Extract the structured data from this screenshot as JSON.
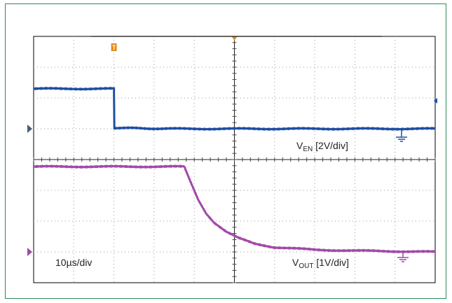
{
  "chart_data": {
    "type": "line",
    "title": "",
    "time_per_div_label": "10µs/div",
    "x_unit": "µs",
    "xlim": [
      0,
      100
    ],
    "grid": true,
    "divisions": {
      "x": 10,
      "y": 8
    },
    "series": [
      {
        "name_base": "V",
        "name_sub": "EN",
        "name_suffix": " [2V/div]",
        "color": "#1f4ea3",
        "volts_per_div": 2,
        "ground_div_from_top": 3,
        "x": [
          0,
          20,
          20.1,
          20.4,
          35,
          60,
          80,
          100
        ],
        "y": [
          2.6,
          2.6,
          0.05,
          0.05,
          0.0,
          0.0,
          0.0,
          0.0
        ]
      },
      {
        "name_base": "V",
        "name_sub": "OUT",
        "name_suffix": " [1V/div]",
        "color": "#a14aa8",
        "volts_per_div": 1,
        "ground_div_from_top": 7,
        "x": [
          0,
          37.5,
          39,
          41,
          43,
          45,
          48,
          51,
          55,
          60,
          70,
          80,
          100
        ],
        "y": [
          2.77,
          2.77,
          2.3,
          1.7,
          1.25,
          0.95,
          0.65,
          0.45,
          0.27,
          0.15,
          0.07,
          0.04,
          0.0
        ]
      }
    ],
    "trigger_marker": "T"
  }
}
